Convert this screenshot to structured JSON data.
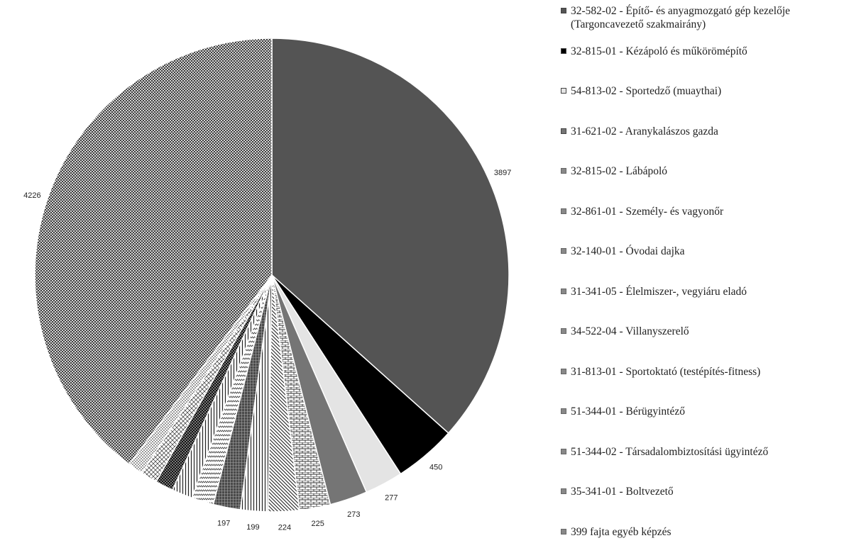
{
  "chart_data": {
    "type": "pie",
    "slices": [
      {
        "label": "32-582-02 - Építő- és anyagmozgató gép kezelője (Targoncavezető szakmairány)",
        "value": 3897,
        "value_label": "3897",
        "fill": "#545454",
        "pattern": "solid"
      },
      {
        "label": "32-815-01 - Kézápoló és műkörömépítő",
        "value": 450,
        "value_label": "450",
        "fill": "#000000",
        "pattern": "solid"
      },
      {
        "label": "54-813-02 - Sportedző (muaythai)",
        "value": 277,
        "value_label": "277",
        "fill": "#e4e4e4",
        "pattern": "solid"
      },
      {
        "label": "31-621-02 - Aranykalászos gazda",
        "value": 273,
        "value_label": "273",
        "fill": "#757575",
        "pattern": "solid"
      },
      {
        "label": "32-815-02 - Lábápoló",
        "value": 225,
        "value_label": "225",
        "fill": "#ffffff",
        "pattern": "bricks"
      },
      {
        "label": "32-861-01 - Személy- és vagyonőr",
        "value": 224,
        "value_label": "224",
        "fill": "#ffffff",
        "pattern": "diagonal"
      },
      {
        "label": "32-140-01 - Óvodai dajka",
        "value": 199,
        "value_label": "199",
        "fill": "#ffffff",
        "pattern": "vertical"
      },
      {
        "label": "31-341-05 - Élelmiszer-, vegyiáru eladó",
        "value": 197,
        "value_label": "197",
        "fill": "#555555",
        "pattern": "grid"
      },
      {
        "label": "34-522-04 - Villanyszerelő",
        "value": 160,
        "value_label": "",
        "fill": "#ffffff",
        "pattern": "zigzag"
      },
      {
        "label": "31-813-01 - Sportoktató (testépítés-fitness)",
        "value": 150,
        "value_label": "",
        "fill": "#ffffff",
        "pattern": "vertical"
      },
      {
        "label": "51-344-01 - Bérügyintéző",
        "value": 130,
        "value_label": "",
        "fill": "#111111",
        "pattern": "checker"
      },
      {
        "label": "51-344-02 - Társadalombiztosítási ügyintéző",
        "value": 120,
        "value_label": "",
        "fill": "#ffffff",
        "pattern": "crossdiag"
      },
      {
        "label": "35-341-01 - Boltvezető",
        "value": 110,
        "value_label": "",
        "fill": "#ffffff",
        "pattern": "dots"
      },
      {
        "label": "399 fajta egyéb képzés",
        "value": 4226,
        "value_label": "4226",
        "fill": "#ffffff",
        "pattern": "dense"
      }
    ]
  }
}
